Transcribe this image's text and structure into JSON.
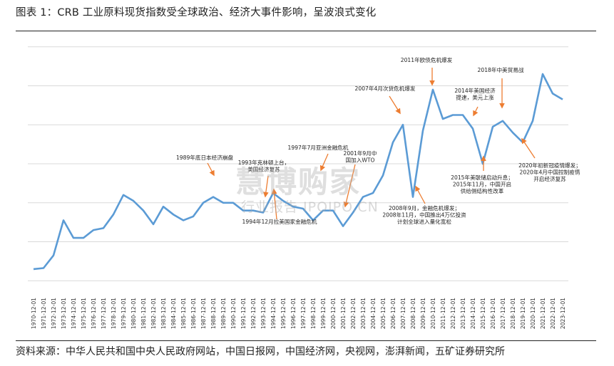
{
  "title": "图表 1：CRB 工业原料现货指数受全球政治、经济大事件影响，呈波浪式变化",
  "source": "资料来源：中华人民共和国中央人民政府网站，中国日报网，中国经济网，央视网，澎湃新闻，五矿证券研究所",
  "watermark": {
    "logo": "慧博购家",
    "subtitle": "行业报告 IPOIPO.CN"
  },
  "colors": {
    "line": "#5b9bd5",
    "arrow": "#ed7d31",
    "grid": "#d9d9d9",
    "text": "#222222"
  },
  "chart_data": {
    "type": "line",
    "title": "",
    "xlabel": "",
    "ylabel": "",
    "grid": true,
    "categories": [
      "1970-12-01",
      "1971-12-01",
      "1972-12-01",
      "1973-12-01",
      "1974-12-01",
      "1975-12-01",
      "1976-12-01",
      "1977-12-01",
      "1978-12-01",
      "1979-12-01",
      "1980-12-01",
      "1981-12-01",
      "1982-12-01",
      "1983-12-01",
      "1984-12-01",
      "1985-12-01",
      "1986-12-01",
      "1987-12-01",
      "1988-12-01",
      "1989-12-01",
      "1990-12-01",
      "1991-12-01",
      "1992-12-01",
      "1993-12-01",
      "1994-12-01",
      "1995-12-01",
      "1996-12-01",
      "1997-12-01",
      "1998-12-01",
      "1999-12-01",
      "2000-12-01",
      "2001-12-01",
      "2002-12-01",
      "2003-12-01",
      "2004-12-01",
      "2005-12-01",
      "2006-12-01",
      "2007-12-01",
      "2008-12-01",
      "2009-12-01",
      "2010-12-01",
      "2011-12-01",
      "2012-12-01",
      "2013-12-01",
      "2014-12-01",
      "2015-12-01",
      "2016-12-01",
      "2017-12-01",
      "2018-12-01",
      "2019-12-01",
      "2020-12-01",
      "2021-12-01",
      "2022-12-01",
      "2023-12-01"
    ],
    "series": [
      {
        "values": [
          0.6,
          0.65,
          1.3,
          3.1,
          2.2,
          2.2,
          2.6,
          2.7,
          3.4,
          4.4,
          4.1,
          3.6,
          2.9,
          3.8,
          3.4,
          3.1,
          3.3,
          4.0,
          4.3,
          4.0,
          4.0,
          3.6,
          3.6,
          3.5,
          4.5,
          4.1,
          3.8,
          3.7,
          3.1,
          3.6,
          3.6,
          2.8,
          3.5,
          4.3,
          4.5,
          5.4,
          7.1,
          8.0,
          4.3,
          7.7,
          9.8,
          8.3,
          8.5,
          8.5,
          7.8,
          6.0,
          7.9,
          8.2,
          7.6,
          7.1,
          8.2,
          10.6,
          9.6,
          9.3
        ]
      }
    ],
    "ylim": [
      -0.5,
      12.5
    ],
    "y_gridlines": [
      0,
      2,
      4,
      6,
      8,
      10,
      12
    ],
    "annotations": [
      {
        "lines": [
          "2011年欧债危机爆发"
        ],
        "point": "2011-12-01"
      },
      {
        "lines": [
          "2018年中美贸易战"
        ],
        "point": "2018-12-01"
      },
      {
        "lines": [
          "2007年4月次贷危机爆发"
        ],
        "point": "2007-12-01"
      },
      {
        "lines": [
          "2014年美国经济",
          "提速，美元上涨"
        ],
        "point": "2014-12-01"
      },
      {
        "lines": [
          "1989年底日本经济崩盘"
        ],
        "point": "1988-12-01"
      },
      {
        "lines": [
          "1997年7月亚洲金融危机"
        ],
        "point": "1998-12-01"
      },
      {
        "lines": [
          "2001年9月中",
          "国加入WTO"
        ],
        "point": "2001-12-01"
      },
      {
        "lines": [
          "1993年克林顿上台，",
          "美国经济复苏"
        ],
        "point": "1993-12-01"
      },
      {
        "lines": [
          "1994年12月拉美国家金融危机"
        ],
        "point": "1994-12-01"
      },
      {
        "lines": [
          "2008年9月，金融危机爆发；",
          "2008年11月，中国推出4万亿投资",
          "计划全球进入量化宽松"
        ],
        "point": "2008-12-01"
      },
      {
        "lines": [
          "2015年美联储启动升息；",
          "2015年11月，中国开启",
          "供给侧结构性改革"
        ],
        "point": "2015-12-01"
      },
      {
        "lines": [
          "2020年初新冠疫情爆发；",
          "2020年4月中国控制疫情",
          "开启经济复苏"
        ],
        "point": "2019-12-01"
      }
    ]
  }
}
